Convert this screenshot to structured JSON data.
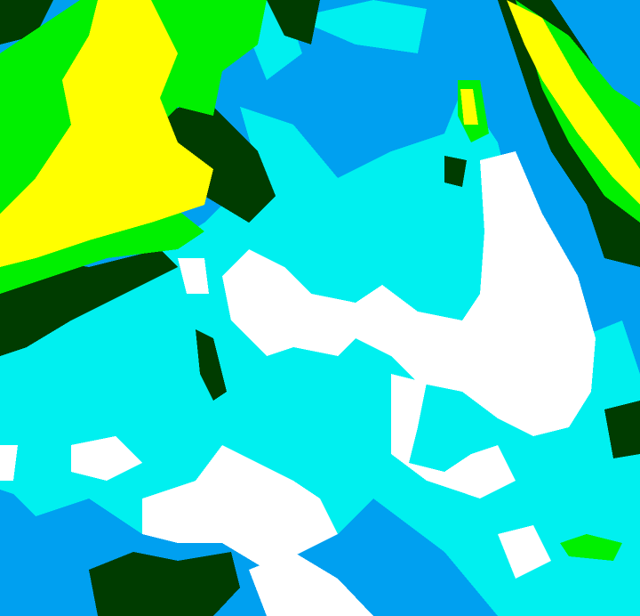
{
  "image": {
    "kind": "false-color satellite imagery",
    "palette": {
      "background": "#00a0f0",
      "cyan": "#00f0f0",
      "white": "#ffffff",
      "yellow": "#ffff00",
      "green": "#00f000",
      "dark_green": "#003c00"
    }
  }
}
